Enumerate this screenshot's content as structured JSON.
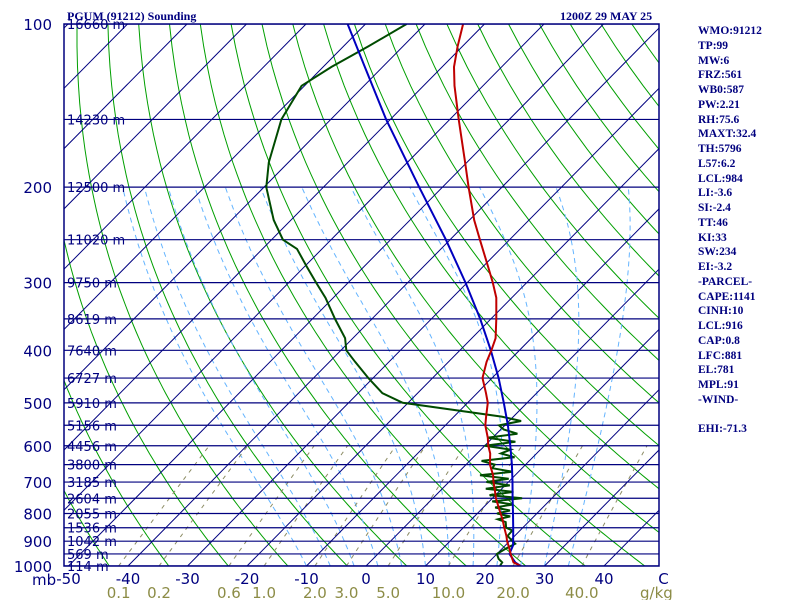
{
  "header": {
    "station": "PGUM (91212) Sounding",
    "valid_time": "1200Z 29 MAY 25"
  },
  "indices": [
    "WMO:91212",
    "TP:99",
    "MW:6",
    "FRZ:561",
    "WB0:587",
    "PW:2.21",
    "RH:75.6",
    "MAXT:32.4",
    "TH:5796",
    "L57:6.2",
    "LCL:984",
    "LI:-3.6",
    "SI:-2.4",
    "TT:46",
    "KI:33",
    "SW:234",
    "EI:-3.2",
    "-PARCEL-",
    "CAPE:1141",
    "CINH:10",
    "LCL:916",
    "CAP:0.8",
    "LFC:881",
    "EL:781",
    "MPL:91",
    "-WIND-",
    "",
    "EHI:-71.3"
  ],
  "colors": {
    "frame": "#00007f",
    "isobar": "#00007f",
    "isotherm": "#00007f",
    "dry_adiabat": "#009f00",
    "moist_adiabat": "#64b4ff",
    "mixing_ratio": "#8c8c64",
    "temperature": "#bf0000",
    "dewpoint": "#004b00",
    "parcel": "#0000bf",
    "label_blue": "#00007f",
    "label_olive": "#8c8c46"
  },
  "chart_data": {
    "type": "skew-t",
    "pressure_axis": {
      "label": "mb",
      "scale": "log",
      "range": [
        1000,
        100
      ],
      "tick_labels": [
        "100",
        "200",
        "300",
        "400",
        "500",
        "600",
        "700",
        "800",
        "900",
        "1000"
      ]
    },
    "temperature_axis": {
      "range": [
        -50,
        50
      ],
      "tick_labels": [
        "-50",
        "-40",
        "-30",
        "-20",
        "-10",
        "0",
        "10",
        "20",
        "30",
        "40",
        "C"
      ]
    },
    "mixing_ratio_labels": {
      "values": [
        0.1,
        0.2,
        0.6,
        1.0,
        2.0,
        3.0,
        5.0,
        10.0,
        20.0,
        40.0
      ],
      "tick_labels": [
        "0.1",
        "0.2",
        "0.6",
        "1.0",
        "2.0",
        "3.0",
        "5.0",
        "10.0",
        "20.0",
        "40.0"
      ],
      "unit": "g/kg"
    },
    "heights": [
      {
        "p": 100,
        "label": "16660 m"
      },
      {
        "p": 150,
        "label": "14230 m"
      },
      {
        "p": 200,
        "label": "12500 m"
      },
      {
        "p": 250,
        "label": "11020 m"
      },
      {
        "p": 300,
        "label": "9750 m"
      },
      {
        "p": 350,
        "label": "8619 m"
      },
      {
        "p": 400,
        "label": "7640 m"
      },
      {
        "p": 450,
        "label": "6727 m"
      },
      {
        "p": 500,
        "label": "5910 m"
      },
      {
        "p": 550,
        "label": "5156 m"
      },
      {
        "p": 600,
        "label": "4456 m"
      },
      {
        "p": 650,
        "label": "3800 m"
      },
      {
        "p": 700,
        "label": "3185 m"
      },
      {
        "p": 750,
        "label": "2604 m"
      },
      {
        "p": 800,
        "label": "2055 m"
      },
      {
        "p": 850,
        "label": "1536 m"
      },
      {
        "p": 900,
        "label": "1042 m"
      },
      {
        "p": 950,
        "label": "569 m"
      },
      {
        "p": 1000,
        "label": "114 m"
      }
    ],
    "temperature": {
      "p": [
        1000,
        985,
        950,
        925,
        900,
        880,
        850,
        820,
        800,
        780,
        750,
        720,
        700,
        680,
        650,
        620,
        600,
        580,
        550,
        530,
        500,
        480,
        450,
        420,
        400,
        380,
        350,
        320,
        300,
        280,
        250,
        230,
        200,
        180,
        150,
        130,
        120,
        110,
        100
      ],
      "t": [
        26.0,
        24.2,
        22.3,
        21.0,
        19.6,
        18.6,
        16.9,
        15.2,
        13.9,
        12.6,
        10.6,
        8.8,
        7.5,
        6.3,
        4.0,
        2.2,
        0.6,
        -0.8,
        -3.3,
        -4.6,
        -6.6,
        -8.5,
        -11.6,
        -13.6,
        -14.7,
        -16.0,
        -19.1,
        -22.6,
        -25.7,
        -29.2,
        -35.0,
        -39.2,
        -45.6,
        -50.3,
        -58.5,
        -64.8,
        -68.0,
        -70.8,
        -73.6
      ]
    },
    "dewpoint": {
      "p": [
        1000,
        985,
        970,
        950,
        930,
        910,
        900,
        880,
        860,
        850,
        830,
        820,
        810,
        800,
        790,
        780,
        770,
        760,
        750,
        740,
        730,
        720,
        710,
        700,
        690,
        680,
        670,
        660,
        650,
        640,
        630,
        620,
        610,
        600,
        590,
        580,
        570,
        560,
        550,
        540,
        530,
        500,
        480,
        450,
        420,
        400,
        380,
        350,
        320,
        300,
        280,
        260,
        250,
        230,
        200,
        180,
        150,
        130,
        120,
        110,
        100
      ],
      "td": [
        22.5,
        22.3,
        21.1,
        20.0,
        20.6,
        21.4,
        20.5,
        18.8,
        18.7,
        17.2,
        16.2,
        14.4,
        16.0,
        13.3,
        15.0,
        12.0,
        14.5,
        10.5,
        15.0,
        9.0,
        12.5,
        7.3,
        10.8,
        6.3,
        9.5,
        4.1,
        9.0,
        5.0,
        4.8,
        2.0,
        6.9,
        4.0,
        5.0,
        0.0,
        4.5,
        -0.9,
        3.5,
        0.5,
        -1.0,
        2.0,
        -2.0,
        -20.9,
        -25.9,
        -30.8,
        -35.7,
        -39.1,
        -41.3,
        -46.2,
        -51.3,
        -55.4,
        -59.7,
        -64.2,
        -68.1,
        -72.9,
        -79.6,
        -83.3,
        -88.3,
        -90.5,
        -88.6,
        -85.8,
        -83.1
      ]
    },
    "parcel": {
      "p": [
        1000,
        985,
        950,
        916,
        900,
        881,
        850,
        800,
        750,
        700,
        650,
        600,
        550,
        500,
        450,
        400,
        350,
        300,
        250,
        200,
        150,
        120,
        100
      ],
      "t": [
        26.0,
        24.5,
        22.1,
        21.3,
        20.6,
        19.8,
        18.4,
        16.0,
        13.4,
        10.7,
        7.7,
        4.3,
        0.5,
        -3.9,
        -8.9,
        -14.8,
        -21.8,
        -30.3,
        -40.7,
        -53.9,
        -70.7,
        -83.0,
        -93.0
      ]
    }
  }
}
